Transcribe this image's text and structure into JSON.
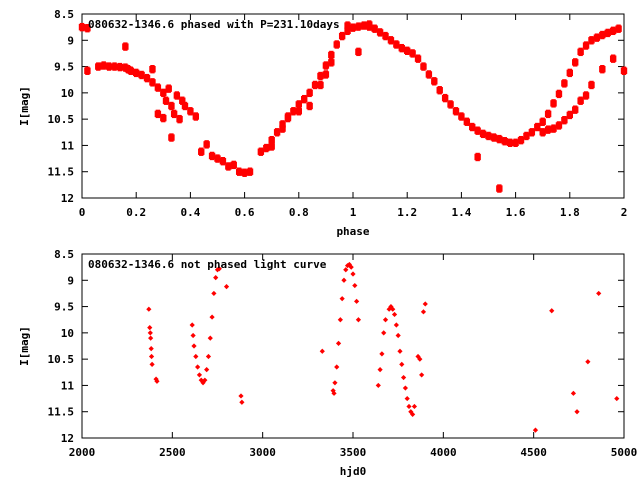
{
  "chart_data": [
    {
      "type": "scatter",
      "title": "080632-1346.6 phased with P=231.10days",
      "xlabel": "phase",
      "ylabel": "I[mag]",
      "xlim": [
        0,
        2
      ],
      "ylim": [
        12,
        8.5
      ],
      "y_inverted": true,
      "xticks": [
        "0",
        "0.2",
        "0.4",
        "0.6",
        "0.8",
        "1",
        "1.2",
        "1.4",
        "1.6",
        "1.8",
        "2"
      ],
      "yticks": [
        "8.5",
        "9",
        "9.5",
        "10",
        "10.5",
        "11",
        "11.5",
        "12"
      ],
      "marker_color": "#ff0000",
      "marker": "filled-square",
      "points": [
        [
          0.0,
          8.75
        ],
        [
          0.02,
          8.77
        ],
        [
          0.02,
          9.58
        ],
        [
          0.06,
          9.5
        ],
        [
          0.08,
          9.48
        ],
        [
          0.1,
          9.5
        ],
        [
          0.12,
          9.5
        ],
        [
          0.14,
          9.51
        ],
        [
          0.16,
          9.52
        ],
        [
          0.17,
          9.55
        ],
        [
          0.18,
          9.58
        ],
        [
          0.2,
          9.62
        ],
        [
          0.22,
          9.66
        ],
        [
          0.24,
          9.72
        ],
        [
          0.26,
          9.8
        ],
        [
          0.28,
          9.9
        ],
        [
          0.3,
          10.0
        ],
        [
          0.31,
          10.15
        ],
        [
          0.33,
          10.25
        ],
        [
          0.34,
          10.4
        ],
        [
          0.36,
          10.5
        ],
        [
          0.16,
          9.12
        ],
        [
          0.26,
          9.55
        ],
        [
          0.28,
          10.4
        ],
        [
          0.3,
          10.48
        ],
        [
          0.33,
          10.85
        ],
        [
          0.32,
          9.92
        ],
        [
          0.35,
          10.05
        ],
        [
          0.37,
          10.15
        ],
        [
          0.38,
          10.25
        ],
        [
          0.4,
          10.35
        ],
        [
          0.42,
          10.45
        ],
        [
          0.44,
          11.12
        ],
        [
          0.46,
          10.98
        ],
        [
          0.48,
          11.2
        ],
        [
          0.5,
          11.25
        ],
        [
          0.52,
          11.3
        ],
        [
          0.54,
          11.4
        ],
        [
          0.56,
          11.37
        ],
        [
          0.58,
          11.5
        ],
        [
          0.6,
          11.52
        ],
        [
          0.62,
          11.5
        ],
        [
          0.66,
          11.12
        ],
        [
          0.68,
          11.05
        ],
        [
          0.7,
          10.9
        ],
        [
          0.72,
          10.75
        ],
        [
          0.74,
          10.6
        ],
        [
          0.76,
          10.48
        ],
        [
          0.78,
          10.35
        ],
        [
          0.8,
          10.22
        ],
        [
          0.82,
          10.12
        ],
        [
          0.84,
          10.0
        ],
        [
          0.86,
          9.85
        ],
        [
          0.88,
          9.68
        ],
        [
          0.9,
          9.48
        ],
        [
          0.92,
          9.28
        ],
        [
          0.94,
          9.08
        ],
        [
          0.96,
          8.92
        ],
        [
          0.98,
          8.82
        ],
        [
          1.0,
          8.76
        ],
        [
          1.02,
          8.74
        ],
        [
          1.04,
          8.72
        ],
        [
          1.06,
          8.74
        ],
        [
          1.08,
          8.78
        ],
        [
          1.1,
          8.85
        ],
        [
          1.12,
          8.92
        ],
        [
          1.14,
          9.0
        ],
        [
          1.16,
          9.08
        ],
        [
          1.18,
          9.15
        ],
        [
          1.2,
          9.2
        ],
        [
          1.22,
          9.25
        ],
        [
          1.24,
          9.35
        ],
        [
          1.26,
          9.5
        ],
        [
          1.28,
          9.65
        ],
        [
          1.3,
          9.78
        ],
        [
          1.32,
          9.95
        ],
        [
          1.34,
          10.1
        ],
        [
          1.36,
          10.22
        ],
        [
          1.38,
          10.35
        ],
        [
          1.4,
          10.45
        ],
        [
          1.42,
          10.55
        ],
        [
          1.44,
          10.65
        ],
        [
          1.46,
          10.72
        ],
        [
          1.48,
          10.78
        ],
        [
          1.5,
          10.82
        ],
        [
          1.52,
          10.85
        ],
        [
          1.54,
          10.88
        ],
        [
          1.56,
          10.92
        ],
        [
          1.58,
          10.95
        ],
        [
          1.6,
          10.95
        ],
        [
          1.62,
          10.9
        ],
        [
          1.64,
          10.82
        ],
        [
          1.66,
          10.75
        ],
        [
          1.68,
          10.65
        ],
        [
          1.7,
          10.55
        ],
        [
          1.72,
          10.4
        ],
        [
          1.74,
          10.2
        ],
        [
          1.76,
          10.02
        ],
        [
          1.78,
          9.82
        ],
        [
          1.8,
          9.62
        ],
        [
          1.82,
          9.42
        ],
        [
          1.84,
          9.22
        ],
        [
          1.86,
          9.1
        ],
        [
          1.88,
          9.0
        ],
        [
          1.9,
          8.95
        ],
        [
          1.92,
          8.9
        ],
        [
          1.94,
          8.86
        ],
        [
          1.96,
          8.82
        ],
        [
          1.98,
          8.78
        ],
        [
          1.02,
          9.22
        ],
        [
          1.06,
          8.7
        ],
        [
          0.98,
          8.72
        ],
        [
          1.54,
          11.82
        ],
        [
          1.46,
          11.22
        ],
        [
          1.7,
          10.75
        ],
        [
          1.72,
          10.7
        ],
        [
          1.74,
          10.68
        ],
        [
          1.76,
          10.62
        ],
        [
          1.78,
          10.52
        ],
        [
          1.8,
          10.42
        ],
        [
          1.82,
          10.32
        ],
        [
          1.84,
          10.15
        ],
        [
          1.86,
          10.05
        ],
        [
          1.88,
          9.85
        ],
        [
          1.92,
          9.55
        ],
        [
          1.96,
          9.35
        ],
        [
          2.0,
          9.58
        ],
        [
          0.7,
          11.02
        ],
        [
          0.74,
          10.68
        ],
        [
          0.76,
          10.45
        ],
        [
          0.8,
          10.35
        ],
        [
          0.84,
          10.25
        ],
        [
          0.88,
          9.85
        ],
        [
          0.9,
          9.65
        ],
        [
          0.92,
          9.42
        ]
      ]
    },
    {
      "type": "scatter",
      "title": "080632-1346.6 not phased light curve",
      "xlabel": "hjd0",
      "ylabel": "I[mag]",
      "xlim": [
        2000,
        5000
      ],
      "ylim": [
        12,
        8.5
      ],
      "y_inverted": true,
      "xticks": [
        "2000",
        "2500",
        "3000",
        "3500",
        "4000",
        "4500",
        "5000"
      ],
      "yticks": [
        "8.5",
        "9",
        "9.5",
        "10",
        "10.5",
        "11",
        "11.5",
        "12"
      ],
      "marker_color": "#ff0000",
      "marker": "filled-diamond",
      "points": [
        [
          2370,
          9.55
        ],
        [
          2375,
          9.9
        ],
        [
          2378,
          10.0
        ],
        [
          2380,
          10.1
        ],
        [
          2383,
          10.3
        ],
        [
          2385,
          10.45
        ],
        [
          2388,
          10.6
        ],
        [
          2410,
          10.88
        ],
        [
          2415,
          10.92
        ],
        [
          2610,
          9.85
        ],
        [
          2615,
          10.05
        ],
        [
          2620,
          10.25
        ],
        [
          2630,
          10.45
        ],
        [
          2640,
          10.65
        ],
        [
          2650,
          10.8
        ],
        [
          2660,
          10.9
        ],
        [
          2670,
          10.95
        ],
        [
          2680,
          10.9
        ],
        [
          2690,
          10.7
        ],
        [
          2700,
          10.45
        ],
        [
          2710,
          10.1
        ],
        [
          2720,
          9.7
        ],
        [
          2730,
          9.25
        ],
        [
          2740,
          8.95
        ],
        [
          2750,
          8.8
        ],
        [
          2760,
          8.78
        ],
        [
          2800,
          9.12
        ],
        [
          2880,
          11.2
        ],
        [
          2885,
          11.32
        ],
        [
          3330,
          10.35
        ],
        [
          3390,
          11.1
        ],
        [
          3395,
          11.15
        ],
        [
          3400,
          10.95
        ],
        [
          3410,
          10.65
        ],
        [
          3420,
          10.2
        ],
        [
          3430,
          9.75
        ],
        [
          3440,
          9.35
        ],
        [
          3450,
          9.0
        ],
        [
          3460,
          8.8
        ],
        [
          3470,
          8.72
        ],
        [
          3480,
          8.7
        ],
        [
          3490,
          8.75
        ],
        [
          3500,
          8.88
        ],
        [
          3510,
          9.1
        ],
        [
          3520,
          9.4
        ],
        [
          3530,
          9.75
        ],
        [
          3640,
          11.0
        ],
        [
          3650,
          10.7
        ],
        [
          3660,
          10.4
        ],
        [
          3670,
          10.0
        ],
        [
          3680,
          9.75
        ],
        [
          3700,
          9.55
        ],
        [
          3710,
          9.5
        ],
        [
          3720,
          9.55
        ],
        [
          3730,
          9.65
        ],
        [
          3740,
          9.85
        ],
        [
          3750,
          10.05
        ],
        [
          3760,
          10.35
        ],
        [
          3770,
          10.6
        ],
        [
          3780,
          10.85
        ],
        [
          3790,
          11.05
        ],
        [
          3800,
          11.25
        ],
        [
          3810,
          11.4
        ],
        [
          3820,
          11.5
        ],
        [
          3830,
          11.55
        ],
        [
          3840,
          11.4
        ],
        [
          3860,
          10.45
        ],
        [
          3870,
          10.5
        ],
        [
          3880,
          10.8
        ],
        [
          3890,
          9.6
        ],
        [
          3900,
          9.45
        ],
        [
          4510,
          11.85
        ],
        [
          4600,
          9.58
        ],
        [
          4720,
          11.15
        ],
        [
          4740,
          11.5
        ],
        [
          4800,
          10.55
        ],
        [
          4860,
          9.25
        ],
        [
          4960,
          11.25
        ]
      ]
    }
  ]
}
